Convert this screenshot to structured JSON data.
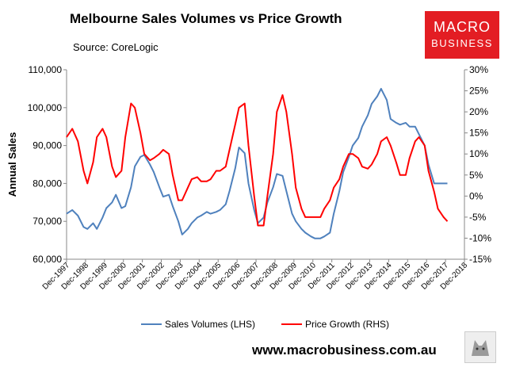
{
  "header": {
    "title": "Melbourne Sales Volumes vs Price Growth",
    "source": "Source: CoreLogic"
  },
  "logo": {
    "line1": "MACRO",
    "line2": "BUSINESS",
    "color": "#e31d23"
  },
  "footer": {
    "url": "www.macrobusiness.com.au"
  },
  "wolf_icon": "wolf-logo-icon",
  "chart_data": {
    "type": "line",
    "title": "Melbourne Sales Volumes vs Price Growth",
    "ylabel": "Annual Sales",
    "y2label": "",
    "ylim": [
      60000,
      110000
    ],
    "y2lim": [
      -15,
      30
    ],
    "yticks": [
      "60,000",
      "70,000",
      "80,000",
      "90,000",
      "100,000",
      "110,000"
    ],
    "y2ticks": [
      "-15%",
      "-10%",
      "-5%",
      "0%",
      "5%",
      "10%",
      "15%",
      "20%",
      "25%",
      "30%"
    ],
    "xticks": [
      "Dec-1997",
      "Dec-1998",
      "Dec-1999",
      "Dec-2000",
      "Dec-2001",
      "Dec-2002",
      "Dec-2003",
      "Dec-2004",
      "Dec-2005",
      "Dec-2006",
      "Dec-2007",
      "Dec-2008",
      "Dec-2009",
      "Dec-2010",
      "Dec-2011",
      "Dec-2012",
      "Dec-2013",
      "Dec-2014",
      "Dec-2015",
      "Dec-2016",
      "Dec-2017",
      "Dec-2018"
    ],
    "grid": false,
    "legend_position": "bottom",
    "series": [
      {
        "name": "Sales Volumes (LHS)",
        "axis": "left",
        "color": "#4f81bd",
        "x": [
          1997.9,
          1998.2,
          1998.5,
          1998.8,
          1999.0,
          1999.3,
          1999.5,
          1999.8,
          2000.0,
          2000.3,
          2000.5,
          2000.8,
          2001.0,
          2001.3,
          2001.5,
          2001.8,
          2002.0,
          2002.3,
          2002.5,
          2002.8,
          2003.0,
          2003.3,
          2003.5,
          2003.8,
          2004.0,
          2004.3,
          2004.5,
          2004.8,
          2005.0,
          2005.3,
          2005.5,
          2005.8,
          2006.0,
          2006.3,
          2006.5,
          2006.8,
          2007.0,
          2007.3,
          2007.5,
          2007.8,
          2008.0,
          2008.3,
          2008.5,
          2008.8,
          2009.0,
          2009.3,
          2009.5,
          2009.8,
          2010.0,
          2010.3,
          2010.5,
          2010.8,
          2011.0,
          2011.3,
          2011.5,
          2011.8,
          2012.0,
          2012.3,
          2012.5,
          2012.8,
          2013.0,
          2013.3,
          2013.5,
          2013.8,
          2014.0,
          2014.3,
          2014.5,
          2014.8,
          2015.0,
          2015.3,
          2015.5,
          2015.8,
          2016.0,
          2016.3,
          2016.5,
          2016.8,
          2017.0,
          2017.3,
          2017.5,
          2017.8,
          2018.0
        ],
        "values": [
          72000,
          73000,
          71500,
          68500,
          68000,
          69500,
          68000,
          71000,
          73500,
          75000,
          77000,
          73500,
          74000,
          79000,
          84500,
          87000,
          87500,
          85000,
          83000,
          79000,
          76500,
          77000,
          74000,
          70000,
          66500,
          68000,
          69500,
          71000,
          71500,
          72500,
          72000,
          72500,
          73000,
          74500,
          78000,
          84000,
          89500,
          88000,
          80000,
          73000,
          69500,
          71000,
          75000,
          79000,
          82500,
          82000,
          78000,
          72000,
          70000,
          68000,
          67000,
          66000,
          65500,
          65500,
          66000,
          67000,
          72000,
          78000,
          83000,
          87000,
          90000,
          92000,
          95000,
          98000,
          101000,
          103000,
          105000,
          102000,
          97000,
          96000,
          95500,
          96000,
          95000,
          95000,
          93000,
          90000,
          85000,
          80000,
          80000,
          80000,
          80000
        ]
      },
      {
        "name": "Price Growth (RHS)",
        "axis": "right",
        "color": "#ff0000",
        "x": [
          1997.9,
          1998.2,
          1998.5,
          1998.8,
          1999.0,
          1999.3,
          1999.5,
          1999.8,
          2000.0,
          2000.3,
          2000.5,
          2000.8,
          2001.0,
          2001.3,
          2001.5,
          2001.8,
          2002.0,
          2002.3,
          2002.5,
          2002.8,
          2003.0,
          2003.3,
          2003.5,
          2003.8,
          2004.0,
          2004.3,
          2004.5,
          2004.8,
          2005.0,
          2005.3,
          2005.5,
          2005.8,
          2006.0,
          2006.3,
          2006.5,
          2006.8,
          2007.0,
          2007.3,
          2007.5,
          2007.8,
          2008.0,
          2008.3,
          2008.5,
          2008.8,
          2009.0,
          2009.3,
          2009.5,
          2009.8,
          2010.0,
          2010.3,
          2010.5,
          2010.8,
          2011.0,
          2011.3,
          2011.5,
          2011.8,
          2012.0,
          2012.3,
          2012.5,
          2012.8,
          2013.0,
          2013.3,
          2013.5,
          2013.8,
          2014.0,
          2014.3,
          2014.5,
          2014.8,
          2015.0,
          2015.3,
          2015.5,
          2015.8,
          2016.0,
          2016.3,
          2016.5,
          2016.8,
          2017.0,
          2017.3,
          2017.5,
          2017.8,
          2018.0
        ],
        "values": [
          14.0,
          16.0,
          13.0,
          6.0,
          3.0,
          8.0,
          14.0,
          16.0,
          14.0,
          7.0,
          4.5,
          6.0,
          14.0,
          22.0,
          21.0,
          15.0,
          10.0,
          8.5,
          9.0,
          10.0,
          11.0,
          10.0,
          5.0,
          -1.0,
          -1.0,
          2.0,
          4.0,
          4.5,
          3.5,
          3.5,
          4.0,
          6.0,
          6.0,
          7.0,
          11.0,
          17.0,
          21.0,
          22.0,
          12.0,
          0.0,
          -7.0,
          -7.0,
          0.0,
          10.0,
          20.0,
          24.0,
          20.0,
          10.0,
          2.0,
          -3.0,
          -5.0,
          -5.0,
          -5.0,
          -5.0,
          -3.0,
          -1.0,
          2.0,
          4.0,
          7.0,
          10.0,
          10.0,
          9.0,
          7.0,
          6.5,
          7.5,
          10.0,
          13.0,
          14.0,
          12.0,
          8.0,
          5.0,
          5.0,
          9.0,
          13.0,
          14.0,
          12.0,
          6.0,
          1.0,
          -3.0,
          -5.0,
          -6.0
        ]
      }
    ]
  }
}
